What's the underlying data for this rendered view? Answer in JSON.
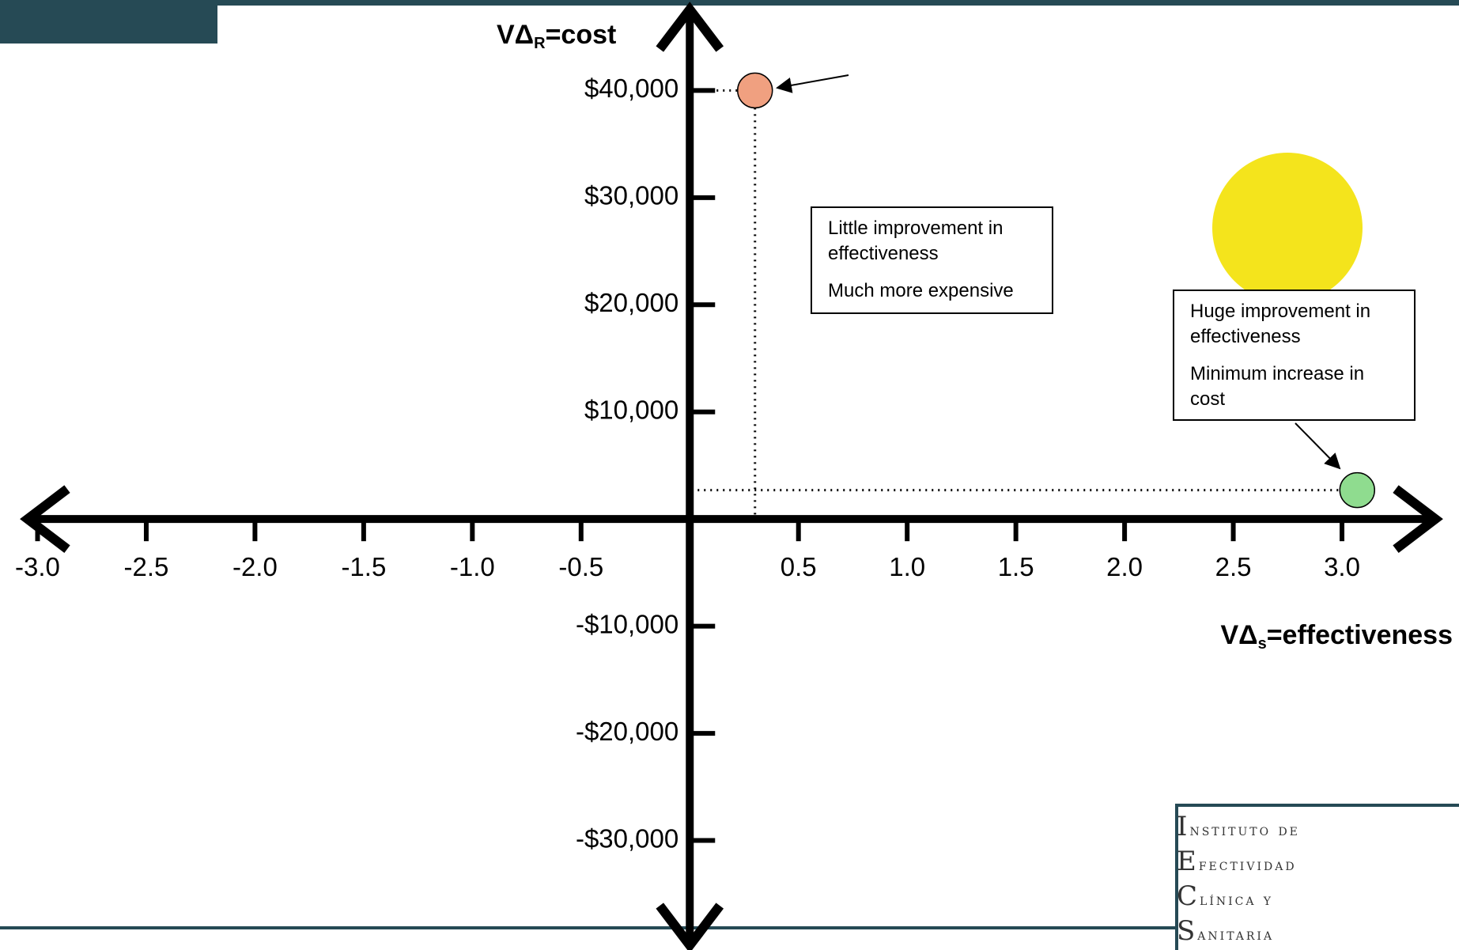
{
  "chart_data": {
    "type": "scatter",
    "ylabel_parts": [
      "VΔ",
      "R",
      "=cost"
    ],
    "xlabel_parts": [
      "VΔ",
      "s",
      "=effectiveness"
    ],
    "x": [
      0.3,
      3.07
    ],
    "values": [
      40000,
      2700
    ],
    "colors": [
      "#f0a080",
      "#8fdc8f"
    ],
    "xlim": [
      -3.1,
      3.4
    ],
    "ylim": [
      -40000,
      48000
    ],
    "xticks": [
      {
        "value": -3,
        "label": "-3.0"
      },
      -2.5,
      {
        "value": -2,
        "label": "-2.0"
      },
      -1.5,
      {
        "value": -1,
        "label": "-1.0"
      },
      -0.5,
      0.5,
      {
        "value": 1,
        "label": "1.0"
      },
      1.5,
      {
        "value": 2,
        "label": "2.0"
      },
      2.5,
      {
        "value": 3,
        "label": "3.0"
      }
    ],
    "yticks": [
      {
        "value": -30000,
        "label": "-$30,000"
      },
      {
        "value": -20000,
        "label": "-$20,000"
      },
      {
        "value": -10000,
        "label": "-$10,000"
      },
      {
        "value": 10000,
        "label": "$10,000"
      },
      {
        "value": 20000,
        "label": "$20,000"
      },
      {
        "value": 30000,
        "label": "$30,000"
      },
      {
        "value": 40000,
        "label": "$40,000"
      }
    ],
    "annotations": [
      [
        "Little improvement in effectiveness",
        "Much more expensive"
      ],
      [
        "Huge improvement in effectiveness",
        "Minimum increase in cost"
      ]
    ]
  },
  "logo": [
    "Instituto de",
    "Efectividad",
    "Clínica y",
    "Sanitaria"
  ]
}
